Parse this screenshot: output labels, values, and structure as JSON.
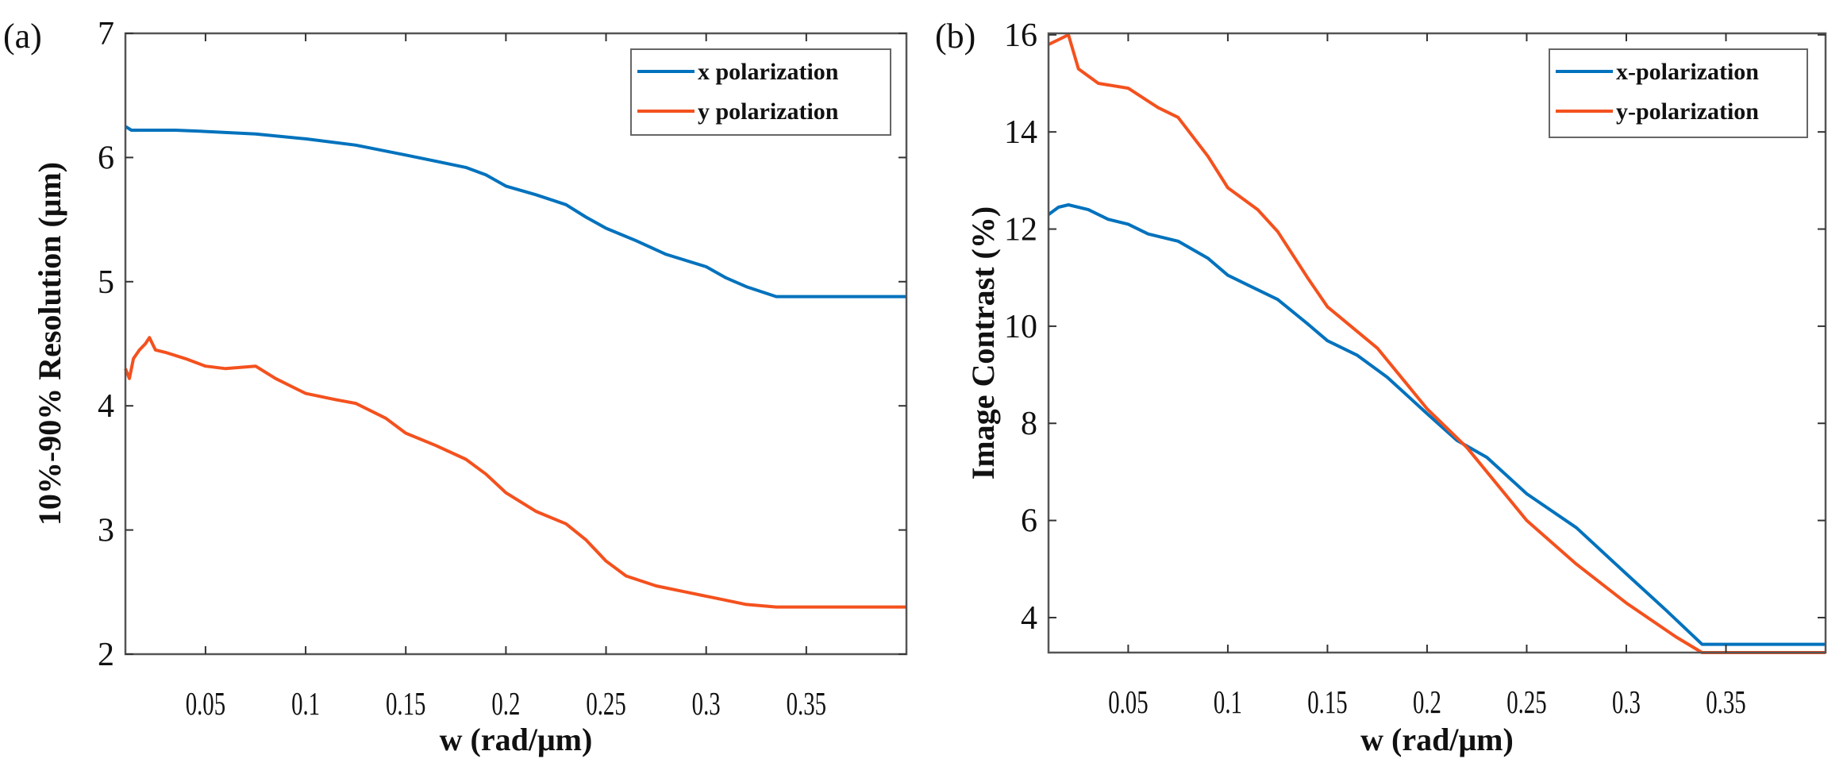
{
  "chart_data": [
    {
      "type": "line",
      "panel_label": "(a)",
      "xlabel": "w (rad/μm)",
      "ylabel": "10%-90% Resolution (μm)",
      "xlim": [
        0.01,
        0.4
      ],
      "ylim": [
        2,
        7
      ],
      "xticks": [
        "0.05",
        "0.1",
        "0.15",
        "0.2",
        "0.25",
        "0.3",
        "0.35"
      ],
      "yticks": [
        "2",
        "3",
        "4",
        "5",
        "6",
        "7"
      ],
      "legend_position": "top-right",
      "grid": false,
      "series": [
        {
          "name": "x polarization",
          "color": "#0072BD",
          "x": [
            0.01,
            0.013,
            0.02,
            0.035,
            0.05,
            0.075,
            0.1,
            0.125,
            0.15,
            0.165,
            0.18,
            0.19,
            0.2,
            0.215,
            0.23,
            0.24,
            0.25,
            0.265,
            0.28,
            0.3,
            0.31,
            0.32,
            0.335,
            0.4
          ],
          "y": [
            6.25,
            6.22,
            6.22,
            6.22,
            6.21,
            6.19,
            6.15,
            6.1,
            6.02,
            5.97,
            5.92,
            5.86,
            5.77,
            5.7,
            5.62,
            5.52,
            5.43,
            5.33,
            5.22,
            5.12,
            5.03,
            4.96,
            4.88,
            4.88
          ]
        },
        {
          "name": "y polarization",
          "color": "#F4511E",
          "x": [
            0.01,
            0.012,
            0.014,
            0.017,
            0.02,
            0.022,
            0.025,
            0.03,
            0.04,
            0.05,
            0.06,
            0.075,
            0.085,
            0.1,
            0.115,
            0.125,
            0.14,
            0.15,
            0.165,
            0.18,
            0.19,
            0.2,
            0.215,
            0.23,
            0.24,
            0.25,
            0.26,
            0.275,
            0.29,
            0.305,
            0.32,
            0.335,
            0.4
          ],
          "y": [
            4.3,
            4.22,
            4.38,
            4.45,
            4.5,
            4.55,
            4.45,
            4.43,
            4.38,
            4.32,
            4.3,
            4.32,
            4.22,
            4.1,
            4.05,
            4.02,
            3.9,
            3.78,
            3.68,
            3.57,
            3.45,
            3.3,
            3.15,
            3.05,
            2.92,
            2.75,
            2.63,
            2.55,
            2.5,
            2.45,
            2.4,
            2.38,
            2.38
          ]
        }
      ]
    },
    {
      "type": "line",
      "panel_label": "(b)",
      "xlabel": "w (rad/μm)",
      "ylabel": "Image Contrast (%)",
      "xlim": [
        0.01,
        0.4
      ],
      "ylim": [
        3.28,
        16.03
      ],
      "xticks": [
        "0.05",
        "0.1",
        "0.15",
        "0.2",
        "0.25",
        "0.3",
        "0.35"
      ],
      "yticks": [
        "4",
        "6",
        "8",
        "10",
        "12",
        "14",
        "16"
      ],
      "legend_position": "top-right",
      "grid": false,
      "series": [
        {
          "name": "x-polarization",
          "color": "#0072BD",
          "x": [
            0.01,
            0.015,
            0.02,
            0.03,
            0.04,
            0.05,
            0.06,
            0.075,
            0.09,
            0.1,
            0.11,
            0.125,
            0.14,
            0.15,
            0.165,
            0.18,
            0.2,
            0.215,
            0.23,
            0.25,
            0.275,
            0.3,
            0.32,
            0.338,
            0.4
          ],
          "y": [
            12.3,
            12.45,
            12.5,
            12.4,
            12.2,
            12.1,
            11.9,
            11.75,
            11.4,
            11.05,
            10.85,
            10.55,
            10.05,
            9.7,
            9.4,
            8.95,
            8.2,
            7.65,
            7.3,
            6.55,
            5.85,
            4.9,
            4.15,
            3.45,
            3.45
          ]
        },
        {
          "name": "y-polarization",
          "color": "#F4511E",
          "x": [
            0.01,
            0.015,
            0.02,
            0.025,
            0.035,
            0.05,
            0.065,
            0.075,
            0.09,
            0.1,
            0.115,
            0.125,
            0.14,
            0.15,
            0.175,
            0.2,
            0.22,
            0.25,
            0.275,
            0.3,
            0.325,
            0.338,
            0.4
          ],
          "y": [
            15.8,
            15.9,
            16.0,
            15.3,
            15.0,
            14.9,
            14.5,
            14.3,
            13.5,
            12.85,
            12.4,
            11.95,
            11.0,
            10.4,
            9.55,
            8.3,
            7.5,
            6.0,
            5.1,
            4.3,
            3.6,
            3.28,
            3.28
          ]
        }
      ]
    }
  ]
}
